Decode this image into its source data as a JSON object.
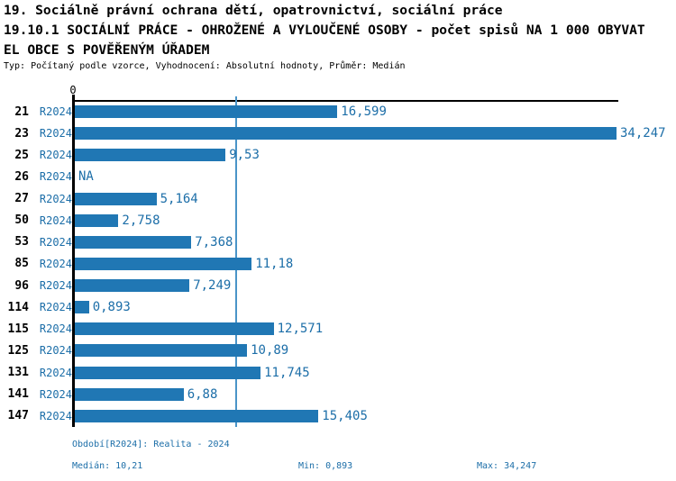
{
  "header": {
    "line1": "19. Sociálně právní ochrana dětí, opatrovnictví, sociální práce",
    "line2": "19.10.1 SOCIÁLNÍ PRÁCE - OHROŽENÉ A VYLOUČENÉ OSOBY - počet spisů NA 1 000 OBYVAT",
    "line3": "EL OBCE S POVĚŘENÝM ÚŘADEM",
    "meta": "Typ: Počítaný podle vzorce, Vyhodnocení: Absolutní hodnoty, Průměr: Medián"
  },
  "chart_data": {
    "type": "bar",
    "orientation": "horizontal",
    "axis_zero_label": "0",
    "series_label": "R2024",
    "categories": [
      "21",
      "23",
      "25",
      "26",
      "27",
      "50",
      "53",
      "85",
      "96",
      "114",
      "115",
      "125",
      "131",
      "141",
      "147"
    ],
    "values": [
      16.599,
      34.247,
      9.53,
      null,
      5.164,
      2.758,
      7.368,
      11.18,
      7.249,
      0.893,
      12.571,
      10.89,
      11.745,
      6.88,
      15.405
    ],
    "value_labels": [
      "16,599",
      "34,247",
      "9,53",
      "NA",
      "5,164",
      "2,758",
      "7,368",
      "11,18",
      "7,249",
      "0,893",
      "12,571",
      "10,89",
      "11,745",
      "6,88",
      "15,405"
    ],
    "median_value": 10.21,
    "xlim": [
      0,
      34.5
    ],
    "grid": false,
    "legend": "none",
    "bar_color": "#2077B4",
    "median_line_color": "#4A94C8",
    "label_color": "#1C6EA8"
  },
  "footer": {
    "period": "Období[R2024]: Realita - 2024",
    "median": "Medián: 10,21",
    "min": "Min: 0,893",
    "max": "Max: 34,247"
  }
}
